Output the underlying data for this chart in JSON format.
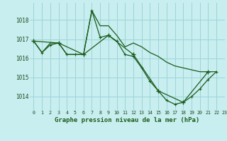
{
  "title": "Graphe pression niveau de la mer (hPa)",
  "bg_color": "#c8eef0",
  "grid_color": "#9dd4d8",
  "line_color": "#1a5c1a",
  "xlim": [
    -0.5,
    23
  ],
  "ylim": [
    1013.3,
    1018.9
  ],
  "yticks": [
    1014,
    1015,
    1016,
    1017,
    1018
  ],
  "xticks": [
    0,
    1,
    2,
    3,
    4,
    5,
    6,
    7,
    8,
    9,
    10,
    11,
    12,
    13,
    14,
    15,
    16,
    17,
    18,
    19,
    20,
    21,
    22,
    23
  ],
  "series": [
    {
      "x": [
        0,
        1,
        2,
        3,
        4,
        5,
        6,
        7,
        8,
        9,
        10,
        11,
        12,
        13,
        14,
        15,
        16,
        17,
        18,
        19,
        20,
        21,
        22
      ],
      "y": [
        1016.9,
        1016.3,
        1016.8,
        1016.8,
        1016.2,
        1016.2,
        1016.2,
        1018.5,
        1017.7,
        1017.7,
        1017.2,
        1016.6,
        1016.8,
        1016.6,
        1016.3,
        1016.1,
        1015.8,
        1015.6,
        1015.5,
        1015.4,
        1015.3,
        1015.3,
        1015.3
      ]
    },
    {
      "x": [
        0,
        1,
        2,
        3,
        4,
        5,
        6,
        7,
        8,
        9,
        10,
        11,
        12,
        13,
        14,
        15,
        16,
        17,
        18,
        19,
        20,
        21,
        22
      ],
      "y": [
        1016.9,
        1016.3,
        1016.7,
        1016.8,
        1016.2,
        1016.2,
        1016.2,
        1018.5,
        1017.1,
        1017.2,
        1016.9,
        1016.2,
        1016.1,
        1015.5,
        1014.8,
        1014.3,
        1013.8,
        1013.6,
        1013.7,
        1014.0,
        1014.4,
        1014.9,
        1015.3
      ]
    },
    {
      "x": [
        0,
        3,
        6,
        9,
        12,
        15,
        18,
        21
      ],
      "y": [
        1016.9,
        1016.8,
        1016.2,
        1017.2,
        1016.2,
        1014.3,
        1013.7,
        1015.3
      ]
    }
  ]
}
